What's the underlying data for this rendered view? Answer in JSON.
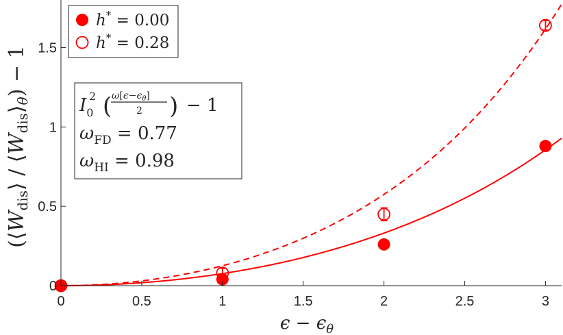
{
  "chart_data": {
    "type": "scatter",
    "xlabel": "ε − ε_θ",
    "ylabel": "(⟨W_dis⟩ / ⟨W_dis⟩_θ) − 1",
    "xlim": [
      0,
      3.1
    ],
    "ylim": [
      0,
      1.8
    ],
    "xticks": [
      "0",
      "0.5",
      "1",
      "1.5",
      "2",
      "2.5",
      "3"
    ],
    "yticks": [
      "0",
      "0.5",
      "1",
      "1.5"
    ],
    "grid": false,
    "legend_position": "top-left",
    "series": [
      {
        "name": "h* = 0.00",
        "marker": "filled-circle",
        "color": "#ff0000",
        "x": [
          0,
          1,
          2,
          3
        ],
        "y": [
          0.0,
          0.04,
          0.26,
          0.88
        ],
        "yerr": [
          0,
          0.01,
          0.01,
          0.01
        ],
        "fit": {
          "style": "solid",
          "formula": "I0^2(ω[ε−εθ]/2) − 1",
          "omega": 0.77
        }
      },
      {
        "name": "h* = 0.28",
        "marker": "open-circle",
        "color": "#ff0000",
        "x": [
          0,
          1,
          2,
          3
        ],
        "y": [
          0.0,
          0.08,
          0.45,
          1.64
        ],
        "yerr": [
          0,
          0.03,
          0.04,
          0.03
        ],
        "fit": {
          "style": "dashed",
          "formula": "I0^2(ω[ε−εθ]/2) − 1",
          "omega": 0.98
        }
      }
    ],
    "annotation": {
      "formula": "I0^2(ω[ε−εθ]/2) − 1",
      "omega_fd_label": "ω_FD = 0.77",
      "omega_hi_label": "ω_HI = 0.98"
    }
  }
}
